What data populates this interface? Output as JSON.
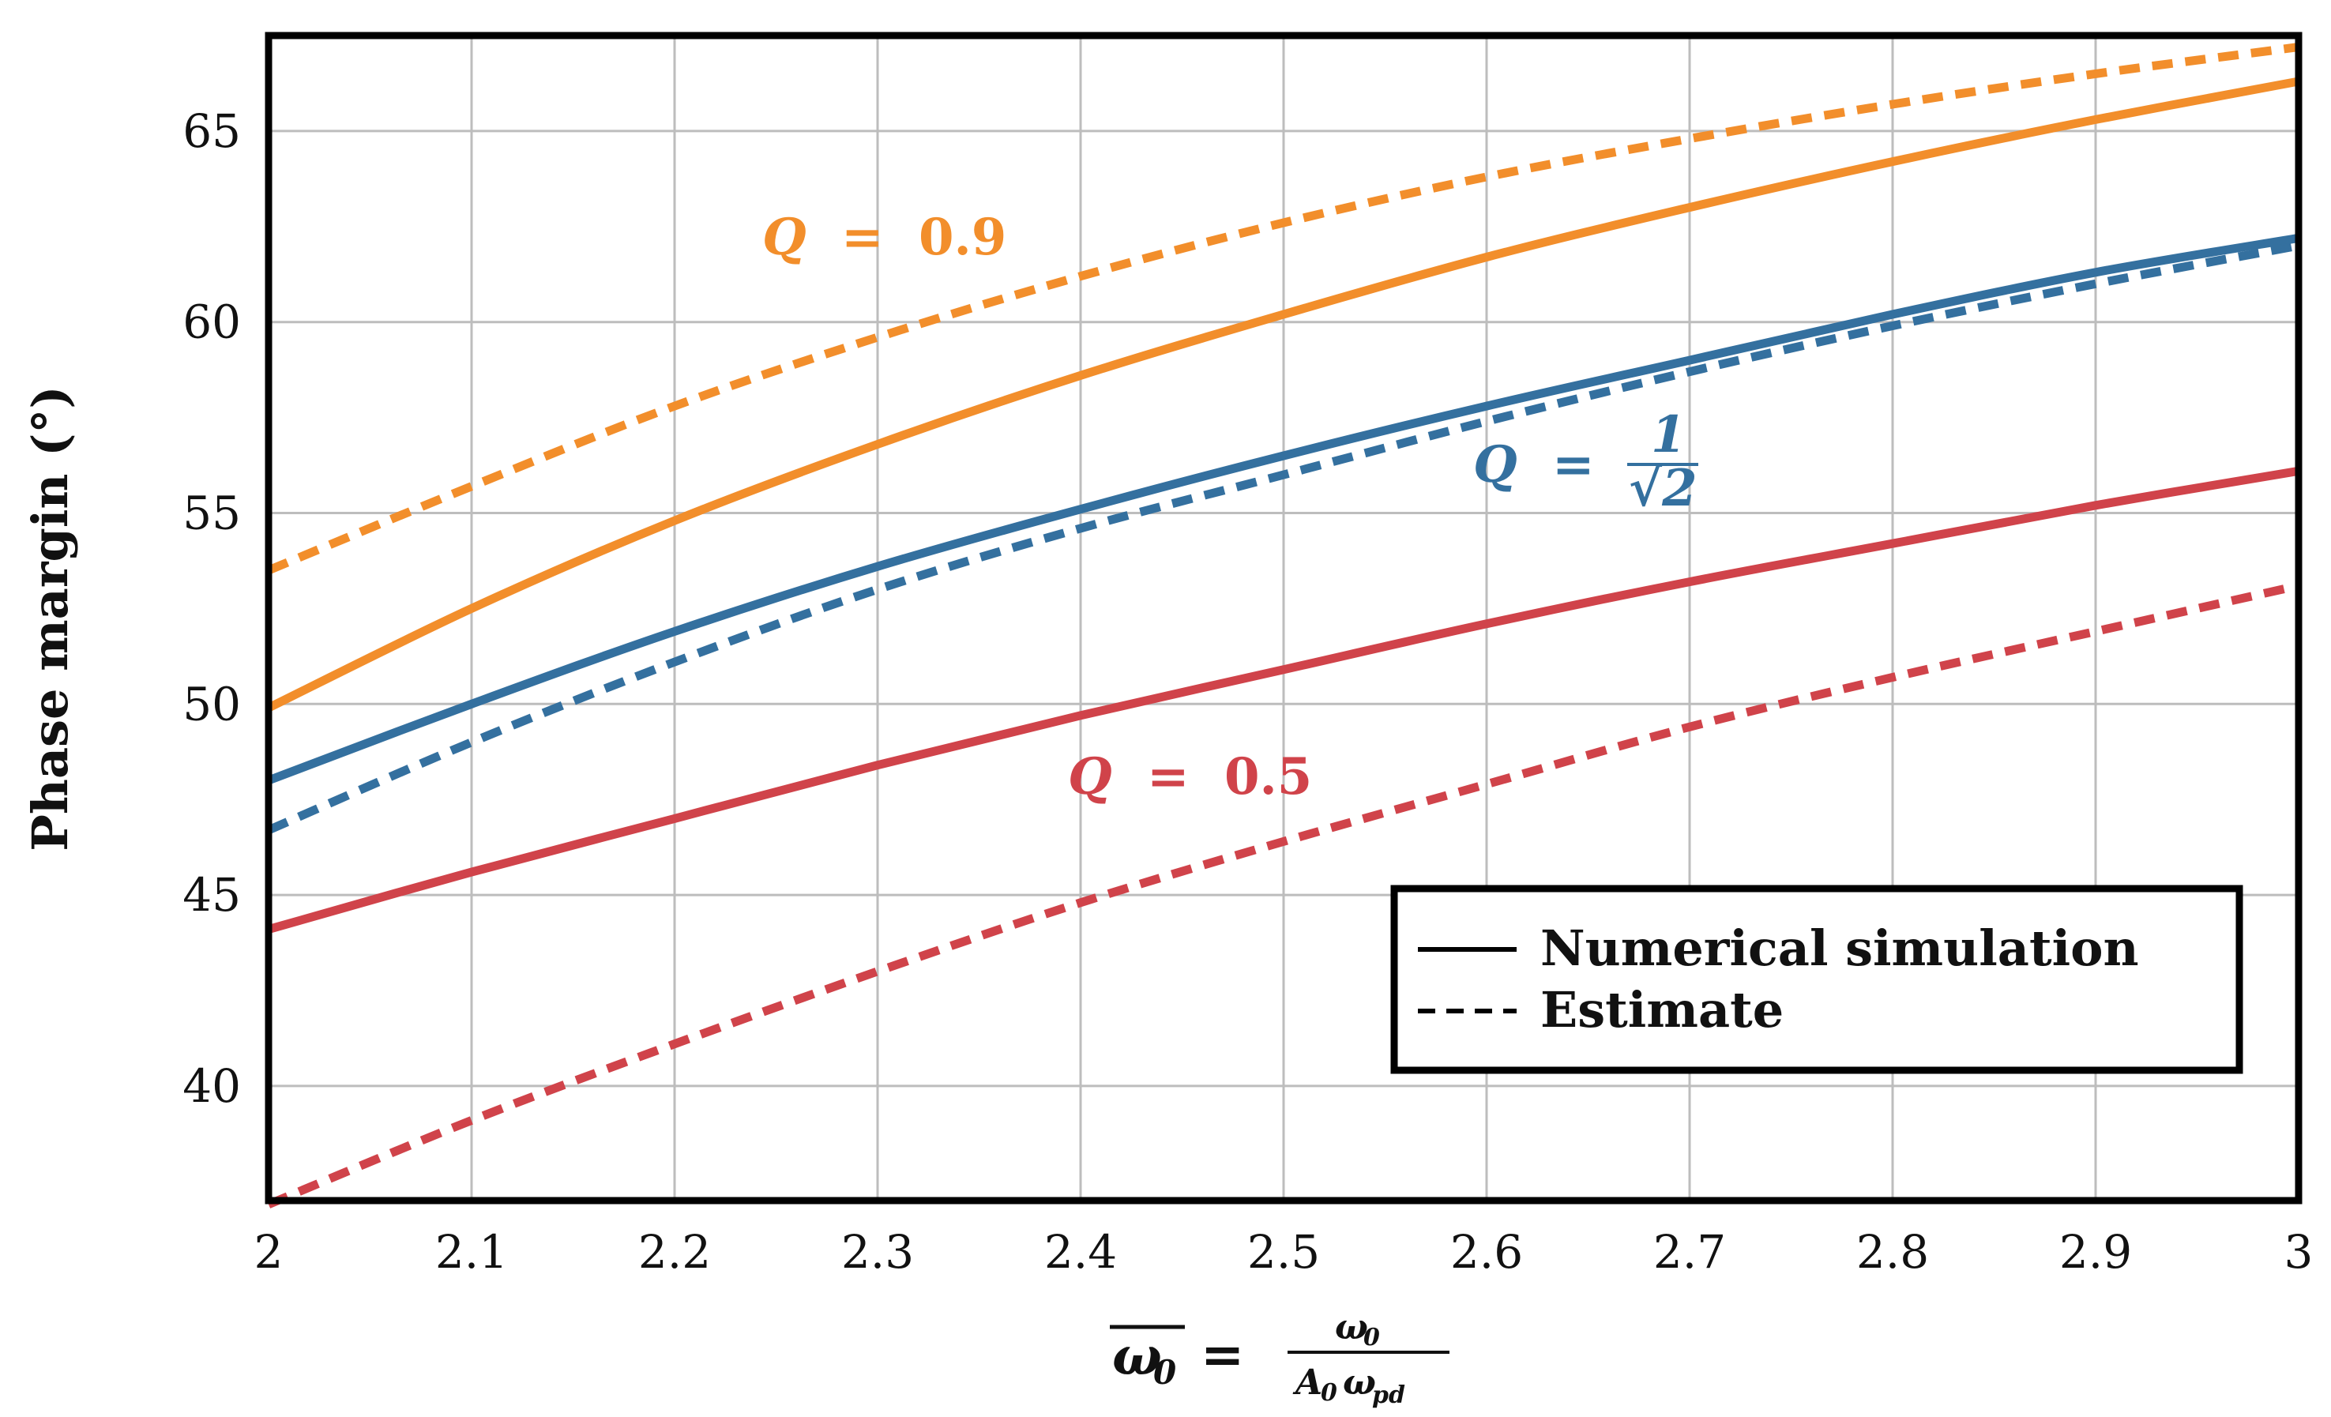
{
  "chart_data": {
    "type": "line",
    "xlabel": {
      "symbol": "ω",
      "subscript": "0",
      "equals": "=",
      "numerator": "ω",
      "numerator_sub": "0",
      "denominator_a": "A",
      "denominator_a_sub": "0",
      "denominator_b": "ω",
      "denominator_b_sub": "pd"
    },
    "ylabel": "Phase margin (°)",
    "xlim": [
      2,
      3
    ],
    "ylim": [
      37,
      67.5
    ],
    "x_ticks": [
      "2",
      "2.1",
      "2.2",
      "2.3",
      "2.4",
      "2.5",
      "2.6",
      "2.7",
      "2.8",
      "2.9",
      "3"
    ],
    "x_tick_values": [
      2,
      2.1,
      2.2,
      2.3,
      2.4,
      2.5,
      2.6,
      2.7,
      2.8,
      2.9,
      3
    ],
    "y_ticks": [
      "40",
      "45",
      "50",
      "55",
      "60",
      "65"
    ],
    "y_tick_values": [
      40,
      45,
      50,
      55,
      60,
      65
    ],
    "grid": true,
    "x": [
      2.0,
      2.1,
      2.2,
      2.3,
      2.4,
      2.5,
      2.6,
      2.7,
      2.8,
      2.9,
      3.0
    ],
    "series": [
      {
        "name": "Q = 0.9 numerical",
        "color": "#f28e2b",
        "style": "solid",
        "values": [
          49.9,
          52.5,
          54.8,
          56.8,
          58.6,
          60.2,
          61.7,
          63.0,
          64.2,
          65.3,
          66.3
        ]
      },
      {
        "name": "Q = 0.9 estimate",
        "color": "#f28e2b",
        "style": "dashed",
        "values": [
          53.5,
          55.7,
          57.8,
          59.6,
          61.2,
          62.6,
          63.8,
          64.8,
          65.7,
          66.5,
          67.2
        ]
      },
      {
        "name": "Q = 1/√2 numerical",
        "color": "#34709f",
        "style": "solid",
        "values": [
          48.0,
          50.0,
          51.9,
          53.6,
          55.1,
          56.5,
          57.8,
          59.0,
          60.2,
          61.3,
          62.2
        ]
      },
      {
        "name": "Q = 1/√2 estimate",
        "color": "#34709f",
        "style": "dashed",
        "values": [
          46.7,
          49.0,
          51.1,
          53.0,
          54.6,
          56.0,
          57.4,
          58.7,
          59.9,
          61.0,
          62.0
        ]
      },
      {
        "name": "Q = 0.5 numerical",
        "color": "#d0434a",
        "style": "solid",
        "values": [
          44.1,
          45.6,
          47.0,
          48.4,
          49.7,
          50.9,
          52.1,
          53.2,
          54.2,
          55.2,
          56.1
        ]
      },
      {
        "name": "Q = 0.5 estimate",
        "color": "#d0434a",
        "style": "dashed",
        "values": [
          36.9,
          39.1,
          41.1,
          43.0,
          44.8,
          46.4,
          47.9,
          49.4,
          50.7,
          51.9,
          53.1
        ]
      }
    ],
    "annotations": [
      {
        "id": "q09",
        "q": "Q",
        "eq": "=",
        "value": "0.9",
        "color": "#f28e2b"
      },
      {
        "id": "qsqrt",
        "q": "Q",
        "eq": "=",
        "num": "1",
        "radical": "√2",
        "color": "#34709f"
      },
      {
        "id": "q05",
        "q": "Q",
        "eq": "=",
        "value": "0.5",
        "color": "#d0434a"
      }
    ],
    "legend": {
      "position": "bottom-right",
      "entries": [
        {
          "label": "Numerical simulation",
          "style": "solid"
        },
        {
          "label": "Estimate",
          "style": "dashed"
        }
      ]
    }
  }
}
